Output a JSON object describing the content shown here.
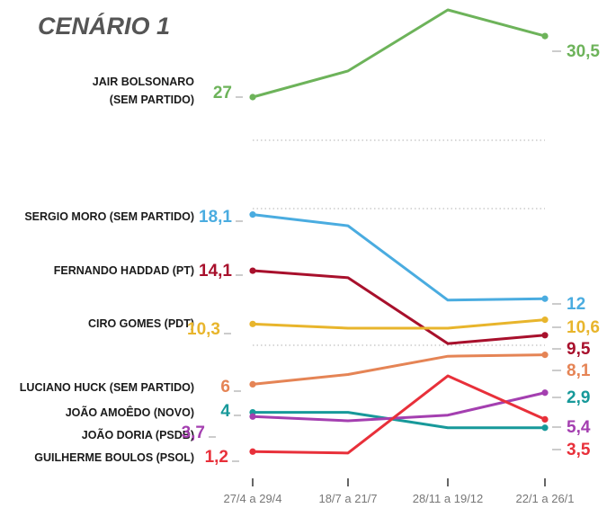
{
  "chart_data": {
    "type": "line",
    "title": "CENÁRIO 1",
    "categories": [
      "27/4 a 29/4",
      "18/7 a 21/7",
      "28/11 a 19/12",
      "22/1 a 26/1"
    ],
    "series": [
      {
        "name": "JAIR BOLSONARO (SEM PARTIDO)",
        "color": "#6db35a",
        "values": [
          27,
          28.5,
          32,
          30.5
        ],
        "first_label": "27",
        "last_label": "30,5"
      },
      {
        "name": "SERGIO MORO (SEM PARTIDO)",
        "color": "#4aace0",
        "values": [
          18.1,
          17.3,
          12,
          12.1
        ],
        "first_label": "18,1",
        "last_label": "12"
      },
      {
        "name": "FERNANDO HADDAD (PT)",
        "color": "#a8102c",
        "values": [
          14.1,
          13.6,
          8.9,
          9.5
        ],
        "first_label": "14,1",
        "last_label": "9,5"
      },
      {
        "name": "CIRO GOMES (PDT)",
        "color": "#e8b52c",
        "values": [
          10.3,
          10.0,
          10.0,
          10.6
        ],
        "first_label": "10,3",
        "last_label": "10,6"
      },
      {
        "name": "LUCIANO HUCK (SEM PARTIDO)",
        "color": "#e58455",
        "values": [
          6,
          6.7,
          8.0,
          8.1
        ],
        "first_label": "6",
        "last_label": "8,1"
      },
      {
        "name": "JOÃO AMOÊDO (NOVO)",
        "color": "#17999a",
        "values": [
          4,
          4,
          2.9,
          2.9
        ],
        "first_label": "4",
        "last_label": "2,9"
      },
      {
        "name": "JOÃO DORIA (PSDB)",
        "color": "#a43fb0",
        "values": [
          3.7,
          3.4,
          3.8,
          5.4
        ],
        "first_label": "3,7",
        "last_label": "5,4"
      },
      {
        "name": "GUILHERME BOULOS (PSOL)",
        "color": "#e8303a",
        "values": [
          1.2,
          1.1,
          6.6,
          3.5
        ],
        "first_label": "1,2",
        "last_label": "3,5"
      }
    ]
  }
}
